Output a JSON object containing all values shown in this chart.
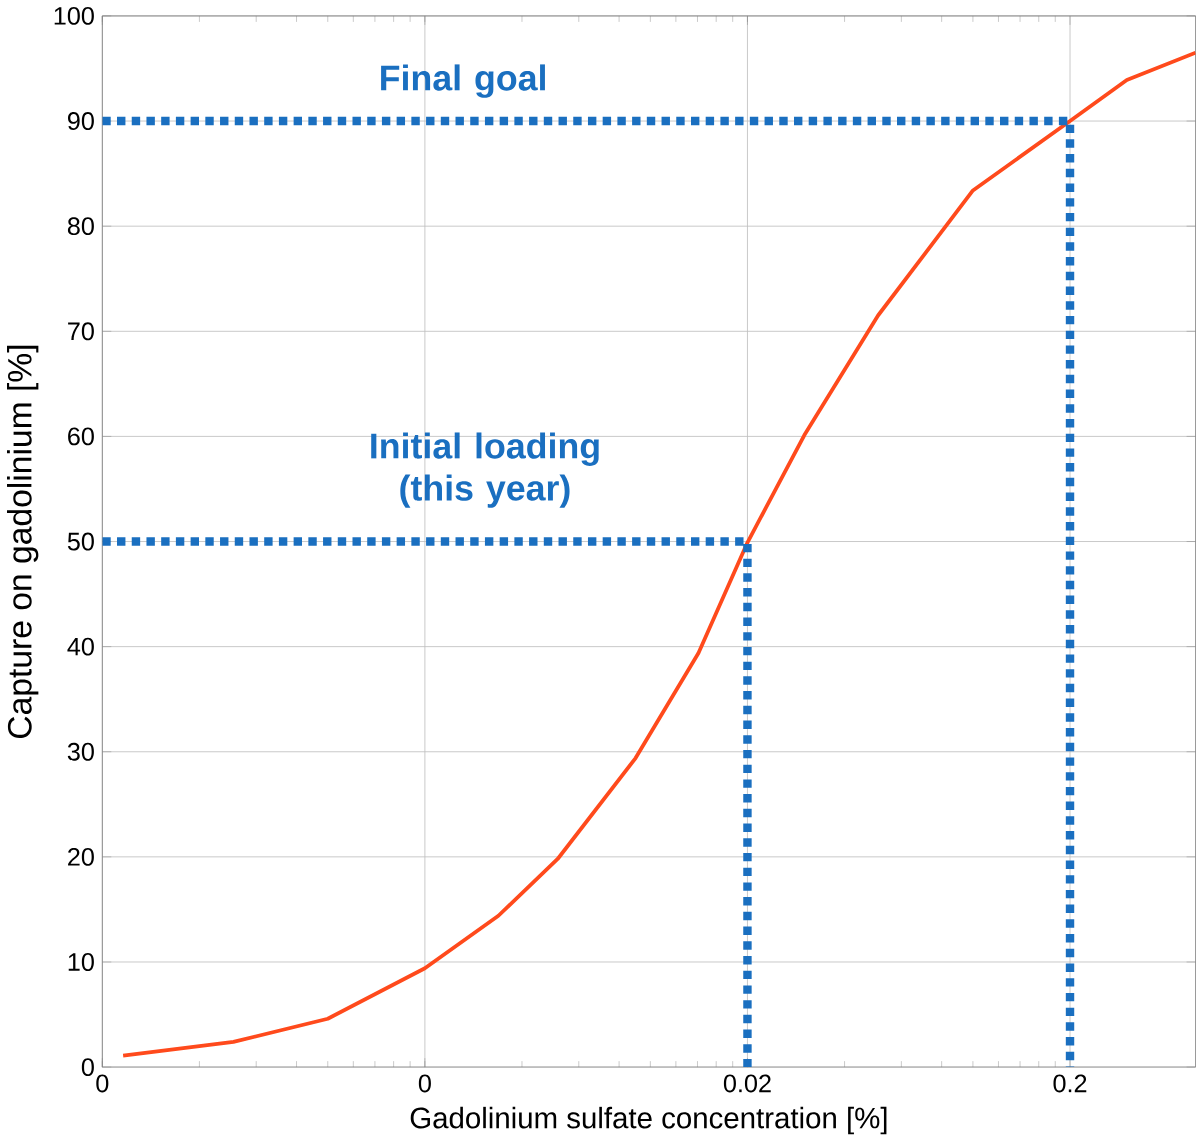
{
  "chart_data": {
    "type": "line",
    "xlabel": "Gadolinium sulfate concentration [%]",
    "ylabel": "Capture on gadolinium [%]",
    "log": "x",
    "xlim": [
      0.0002,
      0.49
    ],
    "ylim": [
      0,
      100
    ],
    "xticks": [
      {
        "value": 0.0002,
        "label": "0"
      },
      {
        "value": 0.002,
        "label": "0"
      },
      0.02,
      0.2
    ],
    "yticks": [
      0,
      10,
      20,
      30,
      40,
      50,
      60,
      70,
      80,
      90,
      100
    ],
    "grid": true,
    "marker": "none",
    "line_style": "solid",
    "series": [
      {
        "color": "#ff4a1c",
        "x": [
          0.000232,
          0.00051,
          0.001,
          0.002,
          0.00338,
          0.00516,
          0.009,
          0.0141,
          0.02,
          0.03,
          0.0508,
          0.1,
          0.2,
          0.3,
          0.49
        ],
        "values": [
          1.1,
          2.4,
          4.6,
          9.4,
          14.4,
          19.8,
          29.4,
          39.4,
          49.9,
          60.1,
          71.5,
          83.4,
          90,
          93.9,
          96.5
        ]
      },
      {
        "color": "#1a6fc0",
        "line_style": "dotted",
        "x": [
          0.0002,
          0.2,
          0.2
        ],
        "values": [
          90,
          90,
          0
        ]
      },
      {
        "color": "#1a6fc0",
        "line_style": "dotted",
        "x": [
          0.0002,
          0.02,
          0.02
        ],
        "values": [
          50,
          50,
          0
        ]
      }
    ],
    "annotations": [
      "Final goal",
      "Initial loading (this year)"
    ]
  }
}
